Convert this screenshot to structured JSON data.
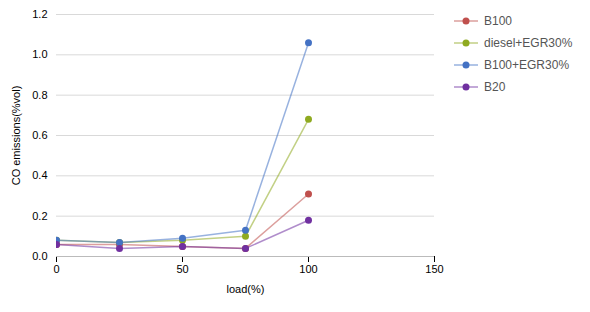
{
  "chart_data": {
    "type": "line",
    "x": [
      0,
      25,
      50,
      75,
      100
    ],
    "series": [
      {
        "name": "B100",
        "color": "#c0504d",
        "values": [
          0.06,
          0.06,
          0.05,
          0.04,
          0.31
        ]
      },
      {
        "name": "diesel+EGR30%",
        "color": "#8faa20",
        "values": [
          0.08,
          0.07,
          0.08,
          0.1,
          0.68
        ]
      },
      {
        "name": "B100+EGR30%",
        "color": "#4472c4",
        "values": [
          0.08,
          0.07,
          0.09,
          0.13,
          1.06
        ]
      },
      {
        "name": "B20",
        "color": "#7030a0",
        "values": [
          0.06,
          0.04,
          0.05,
          0.04,
          0.18
        ]
      }
    ],
    "x_label": "load(%)",
    "y_label": "CO emissions(%vol)",
    "xlim": [
      0,
      150
    ],
    "ylim": [
      0,
      1.2
    ],
    "xticks": [
      0,
      50,
      100,
      150
    ],
    "yticks": [
      {
        "value": 0,
        "label": "0.0"
      },
      0.2,
      0.4,
      0.6,
      0.8,
      {
        "value": 1.0,
        "label": "1.0"
      },
      1.2
    ],
    "grid": true,
    "legend": "right",
    "marker": "circle"
  }
}
